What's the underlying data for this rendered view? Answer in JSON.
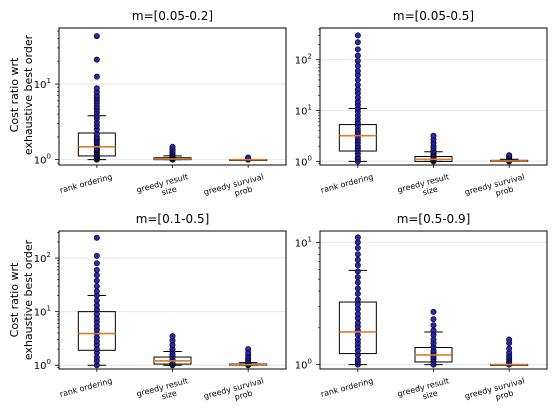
{
  "figure": {
    "ylabel_line1": "Cost ratio wrt",
    "ylabel_line2": "exhaustive best order"
  },
  "chart_data": [
    {
      "type": "box",
      "title": "m=[0.05-0.2]",
      "categories": [
        "rank ordering",
        "greedy result size",
        "greedy survival prob"
      ],
      "ylabel": "Cost ratio wrt exhaustive best order",
      "yscale": "log",
      "ylim": [
        0.85,
        55
      ],
      "yticks": [
        1,
        10
      ],
      "ytick_labels": [
        "10^0",
        "10^1"
      ],
      "grid": "y",
      "boxes": [
        {
          "q1": 1.12,
          "median": 1.48,
          "q3": 2.25,
          "whisker_low": 1.0,
          "whisker_high": 3.8,
          "points": [
            1.0,
            1.02,
            1.05,
            1.08,
            1.1,
            1.15,
            1.2,
            1.25,
            1.3,
            1.35,
            1.4,
            1.5,
            1.6,
            1.7,
            1.8,
            1.9,
            2.0,
            2.2,
            2.5,
            2.8,
            3.1,
            3.5,
            3.8,
            4.2,
            4.6,
            5.0,
            5.5,
            6.0,
            6.5,
            7.0,
            7.8,
            8.8,
            12.5,
            21,
            43
          ]
        },
        {
          "q1": 1.0,
          "median": 1.02,
          "q3": 1.06,
          "whisker_low": 1.0,
          "whisker_high": 1.12,
          "points": [
            1.0,
            1.01,
            1.02,
            1.03,
            1.05,
            1.07,
            1.1,
            1.15,
            1.2,
            1.25,
            1.32,
            1.4,
            1.48
          ]
        },
        {
          "q1": 1.0,
          "median": 1.0,
          "q3": 1.0,
          "whisker_low": 1.0,
          "whisker_high": 1.0,
          "points": [
            1.0,
            1.01,
            1.02,
            1.04,
            1.07
          ]
        }
      ]
    },
    {
      "type": "box",
      "title": "m=[0.05-0.5]",
      "categories": [
        "rank ordering",
        "greedy result size",
        "greedy survival prob"
      ],
      "yscale": "log",
      "ylim": [
        0.85,
        420
      ],
      "yticks": [
        1,
        10,
        100
      ],
      "ytick_labels": [
        "10^0",
        "10^1",
        "10^2"
      ],
      "grid": "y",
      "boxes": [
        {
          "q1": 1.6,
          "median": 3.2,
          "q3": 5.3,
          "whisker_low": 1.0,
          "whisker_high": 11,
          "points": [
            1.0,
            1.1,
            1.2,
            1.4,
            1.6,
            1.8,
            2.0,
            2.3,
            2.6,
            3.0,
            3.4,
            3.8,
            4.3,
            5.0,
            5.8,
            6.8,
            8,
            9.5,
            11,
            13,
            15,
            18,
            22,
            26,
            32,
            40,
            50,
            60,
            75,
            95,
            120,
            160,
            220,
            300
          ]
        },
        {
          "q1": 1.0,
          "median": 1.1,
          "q3": 1.25,
          "whisker_low": 1.0,
          "whisker_high": 1.55,
          "points": [
            1.0,
            1.05,
            1.1,
            1.15,
            1.2,
            1.3,
            1.4,
            1.5,
            1.6,
            1.8,
            2.0,
            2.3,
            2.7,
            3.2
          ]
        },
        {
          "q1": 1.0,
          "median": 1.02,
          "q3": 1.05,
          "whisker_low": 1.0,
          "whisker_high": 1.1,
          "points": [
            1.0,
            1.02,
            1.05,
            1.1,
            1.15,
            1.2,
            1.25,
            1.32
          ]
        }
      ]
    },
    {
      "type": "box",
      "title": "m=[0.1-0.5]",
      "categories": [
        "rank ordering",
        "greedy result size",
        "greedy survival prob"
      ],
      "ylabel": "Cost ratio wrt exhaustive best order",
      "yscale": "log",
      "ylim": [
        0.85,
        320
      ],
      "yticks": [
        1,
        10,
        100
      ],
      "ytick_labels": [
        "10^0",
        "10^1",
        "10^2"
      ],
      "grid": "y",
      "boxes": [
        {
          "q1": 1.9,
          "median": 3.9,
          "q3": 10,
          "whisker_low": 1.0,
          "whisker_high": 20,
          "points": [
            1.0,
            1.2,
            1.4,
            1.7,
            2.0,
            2.4,
            2.8,
            3.3,
            3.9,
            4.6,
            5.4,
            6.4,
            7.5,
            9,
            11,
            13,
            16,
            20,
            24,
            30,
            38,
            48,
            60,
            80,
            110,
            240
          ]
        },
        {
          "q1": 1.05,
          "median": 1.2,
          "q3": 1.42,
          "whisker_low": 1.0,
          "whisker_high": 1.8,
          "points": [
            1.0,
            1.05,
            1.1,
            1.2,
            1.3,
            1.45,
            1.6,
            1.8,
            2.0,
            2.4,
            2.9,
            3.5
          ]
        },
        {
          "q1": 1.0,
          "median": 1.02,
          "q3": 1.05,
          "whisker_low": 1.0,
          "whisker_high": 1.12,
          "points": [
            1.0,
            1.03,
            1.06,
            1.1,
            1.15,
            1.25,
            1.35,
            1.5,
            1.7,
            2.0
          ]
        }
      ]
    },
    {
      "type": "box",
      "title": "m=[0.5-0.9]",
      "categories": [
        "rank ordering",
        "greedy result size",
        "greedy survival prob"
      ],
      "yscale": "log",
      "ylim": [
        0.92,
        12.4
      ],
      "yticks": [
        1,
        10
      ],
      "ytick_labels": [
        "10^0",
        "10^1"
      ],
      "grid": "y",
      "boxes": [
        {
          "q1": 1.23,
          "median": 1.85,
          "q3": 3.25,
          "whisker_low": 1.0,
          "whisker_high": 5.9,
          "points": [
            1.0,
            1.05,
            1.1,
            1.2,
            1.3,
            1.4,
            1.5,
            1.6,
            1.75,
            1.9,
            2.05,
            2.2,
            2.4,
            2.6,
            2.85,
            3.1,
            3.4,
            3.8,
            4.2,
            4.7,
            5.2,
            5.8,
            6.5,
            7.2,
            8.0,
            9.0,
            10.0,
            11.0
          ]
        },
        {
          "q1": 1.05,
          "median": 1.2,
          "q3": 1.38,
          "whisker_low": 1.0,
          "whisker_high": 1.85,
          "points": [
            1.0,
            1.05,
            1.1,
            1.15,
            1.2,
            1.25,
            1.3,
            1.4,
            1.5,
            1.6,
            1.75,
            1.9,
            2.1,
            2.35,
            2.7
          ]
        },
        {
          "q1": 1.0,
          "median": 1.0,
          "q3": 1.0,
          "whisker_low": 1.0,
          "whisker_high": 1.0,
          "points": [
            1.0,
            1.03,
            1.06,
            1.1,
            1.14,
            1.18,
            1.25,
            1.35,
            1.5,
            1.6
          ]
        }
      ]
    }
  ],
  "colors": {
    "median": "#e07b2a",
    "points_fill": "#1f1fbf",
    "points_edge": "#0a0a0a",
    "box_edge": "#000000",
    "grid": "#e6e6e6"
  }
}
